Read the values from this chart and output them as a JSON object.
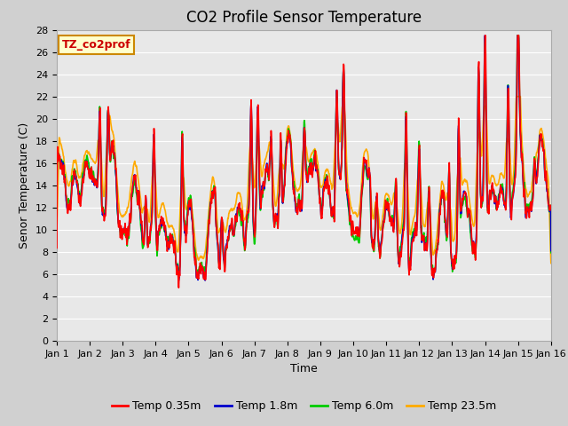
{
  "title": "CO2 Profile Sensor Temperature",
  "xlabel": "Time",
  "ylabel": "Senor Temperature (C)",
  "ylim": [
    0,
    28
  ],
  "yticks": [
    0,
    2,
    4,
    6,
    8,
    10,
    12,
    14,
    16,
    18,
    20,
    22,
    24,
    26,
    28
  ],
  "xtick_labels": [
    "Jan 1",
    "Jan 2",
    "Jan 3",
    "Jan 4",
    "Jan 5",
    "Jan 6",
    "Jan 7",
    "Jan 8",
    "Jan 9",
    "Jan 10",
    "Jan 11",
    "Jan 12",
    "Jan 13",
    "Jan 14",
    "Jan 15",
    "Jan 16"
  ],
  "series_names": [
    "Temp 0.35m",
    "Temp 1.8m",
    "Temp 6.0m",
    "Temp 23.5m"
  ],
  "series_colors": [
    "#ff0000",
    "#0000cc",
    "#00cc00",
    "#ffaa00"
  ],
  "series_lw": [
    1.2,
    1.2,
    1.2,
    1.2
  ],
  "annotation_text": "TZ_co2prof",
  "annotation_bg": "#ffffcc",
  "annotation_border": "#cc8800",
  "fig_bg": "#d0d0d0",
  "plot_bg": "#e8e8e8",
  "grid_color": "#ffffff",
  "title_fontsize": 12,
  "label_fontsize": 9,
  "tick_fontsize": 8
}
